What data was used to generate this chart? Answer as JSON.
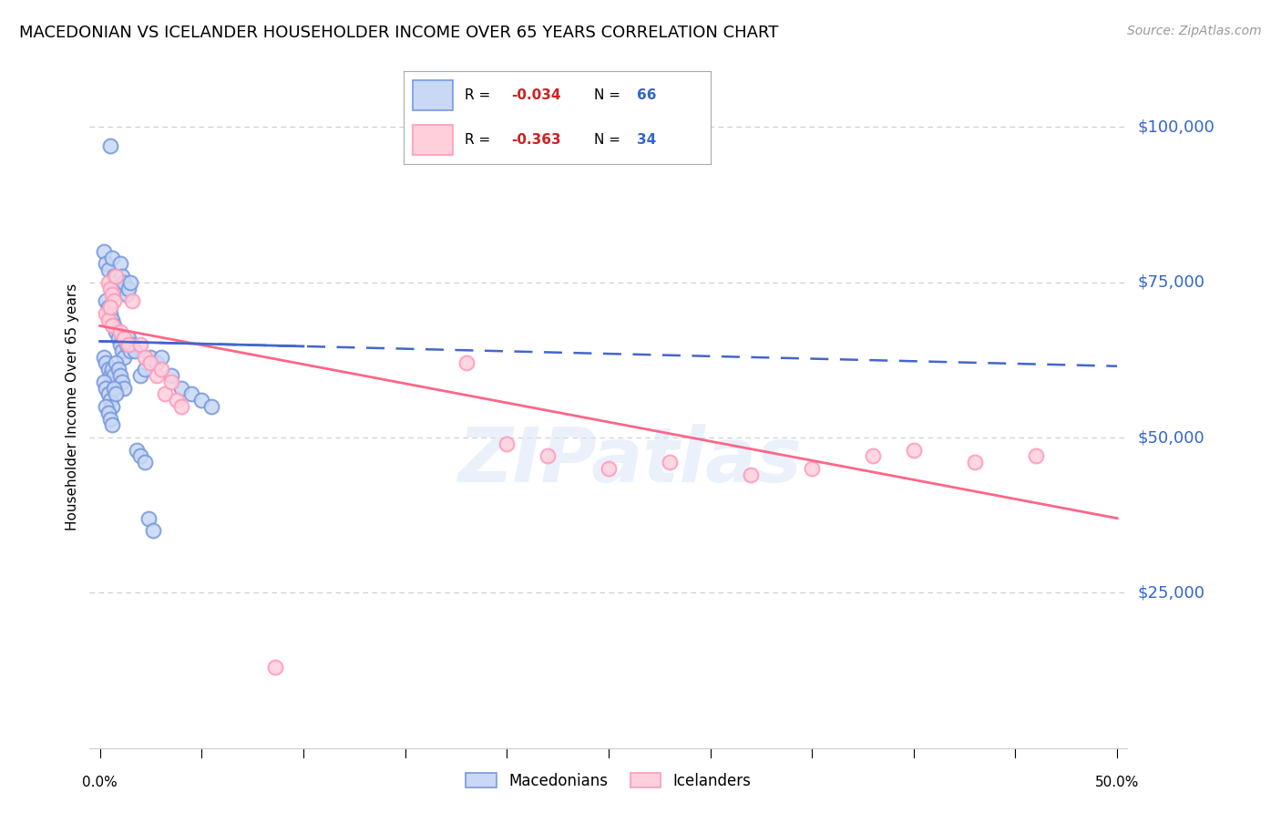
{
  "title": "MACEDONIAN VS ICELANDER HOUSEHOLDER INCOME OVER 65 YEARS CORRELATION CHART",
  "source": "Source: ZipAtlas.com",
  "ylabel": "Householder Income Over 65 years",
  "y_tick_labels": [
    "$25,000",
    "$50,000",
    "$75,000",
    "$100,000"
  ],
  "y_tick_values": [
    25000,
    50000,
    75000,
    100000
  ],
  "watermark": "ZIPatlas",
  "mac_face_color": "#c8d8f5",
  "mac_edge_color": "#7799dd",
  "ice_face_color": "#ffd0dc",
  "ice_edge_color": "#ff99bb",
  "mac_line_color": "#4466cc",
  "ice_line_color": "#ff6688",
  "background_color": "#ffffff",
  "grid_color": "#cccccc",
  "ytick_color": "#3366cc",
  "mac_r": -0.034,
  "mac_n": 66,
  "ice_r": -0.363,
  "ice_n": 34,
  "mac_points_x": [
    0.005,
    0.002,
    0.003,
    0.004,
    0.006,
    0.007,
    0.008,
    0.009,
    0.01,
    0.011,
    0.012,
    0.013,
    0.014,
    0.015,
    0.003,
    0.004,
    0.005,
    0.006,
    0.007,
    0.008,
    0.009,
    0.01,
    0.011,
    0.012,
    0.013,
    0.014,
    0.015,
    0.016,
    0.017,
    0.002,
    0.003,
    0.004,
    0.005,
    0.006,
    0.007,
    0.008,
    0.009,
    0.01,
    0.011,
    0.012,
    0.02,
    0.022,
    0.025,
    0.028,
    0.03,
    0.002,
    0.003,
    0.004,
    0.005,
    0.006,
    0.007,
    0.008,
    0.003,
    0.004,
    0.005,
    0.006,
    0.035,
    0.04,
    0.045,
    0.05,
    0.055,
    0.018,
    0.02,
    0.022,
    0.024,
    0.026
  ],
  "mac_points_y": [
    97000,
    80000,
    78000,
    77000,
    79000,
    76000,
    75000,
    74000,
    78000,
    76000,
    75000,
    73000,
    74000,
    75000,
    72000,
    71000,
    70000,
    69000,
    68000,
    67000,
    66000,
    65000,
    64000,
    63000,
    65000,
    66000,
    64000,
    65000,
    64000,
    63000,
    62000,
    61000,
    60000,
    61000,
    60000,
    62000,
    61000,
    60000,
    59000,
    58000,
    60000,
    61000,
    63000,
    62000,
    63000,
    59000,
    58000,
    57000,
    56000,
    55000,
    58000,
    57000,
    55000,
    54000,
    53000,
    52000,
    60000,
    58000,
    57000,
    56000,
    55000,
    48000,
    47000,
    46000,
    37000,
    35000
  ],
  "ice_points_x": [
    0.004,
    0.005,
    0.006,
    0.007,
    0.008,
    0.003,
    0.004,
    0.005,
    0.006,
    0.01,
    0.012,
    0.014,
    0.016,
    0.02,
    0.022,
    0.025,
    0.028,
    0.03,
    0.032,
    0.035,
    0.038,
    0.04,
    0.18,
    0.2,
    0.22,
    0.25,
    0.28,
    0.32,
    0.35,
    0.38,
    0.4,
    0.43,
    0.086,
    0.46
  ],
  "ice_points_y": [
    75000,
    74000,
    73000,
    72000,
    76000,
    70000,
    69000,
    71000,
    68000,
    67000,
    66000,
    65000,
    72000,
    65000,
    63000,
    62000,
    60000,
    61000,
    57000,
    59000,
    56000,
    55000,
    62000,
    49000,
    47000,
    45000,
    46000,
    44000,
    45000,
    47000,
    48000,
    46000,
    13000,
    47000
  ]
}
